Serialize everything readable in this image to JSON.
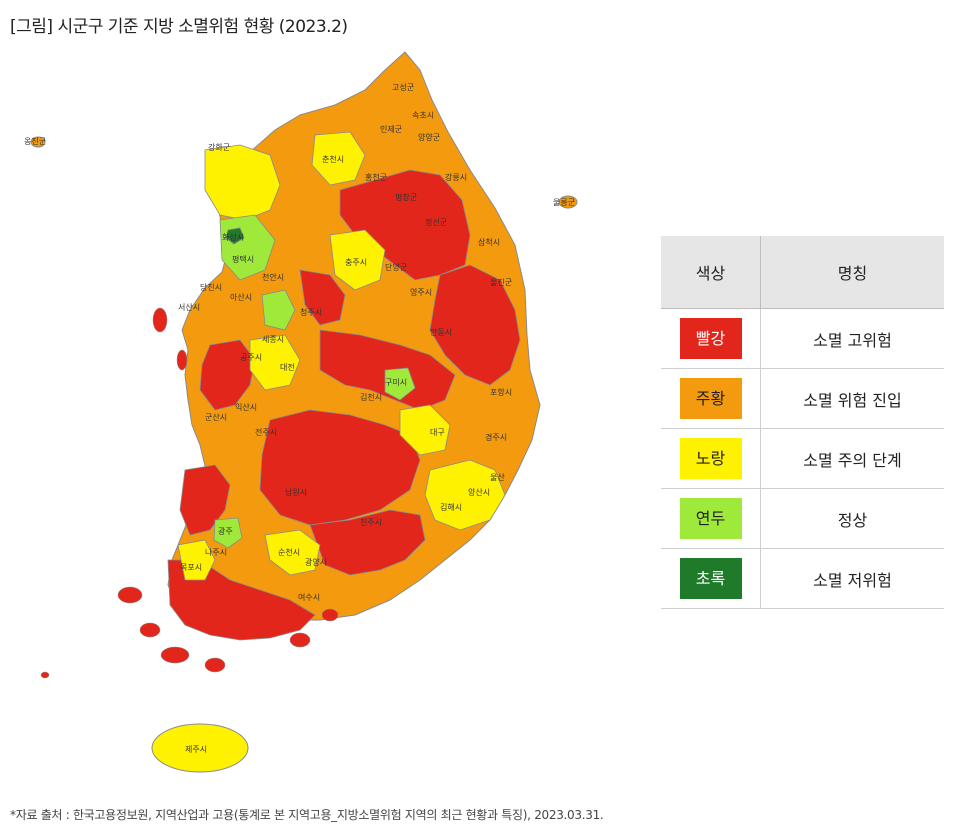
{
  "title": "[그림] 시군구 기준 지방 소멸위험 현황 (2023.2)",
  "legend": {
    "header": {
      "color": "색상",
      "name": "명칭"
    },
    "items": [
      {
        "swatch_label": "빨강",
        "name": "소멸 고위험",
        "color": "#e2261b",
        "text_color": "#ffffff"
      },
      {
        "swatch_label": "주황",
        "name": "소멸 위험 진입",
        "color": "#f39a0e",
        "text_color": "#222222"
      },
      {
        "swatch_label": "노랑",
        "name": "소멸 주의 단계",
        "color": "#fff200",
        "text_color": "#222222"
      },
      {
        "swatch_label": "연두",
        "name": "정상",
        "color": "#9ee93a",
        "text_color": "#222222"
      },
      {
        "swatch_label": "초록",
        "name": "소멸 저위험",
        "color": "#1f7a2a",
        "text_color": "#ffffff"
      }
    ]
  },
  "map_labels": {
    "jeju": "제주시",
    "chuncheon": "춘천시",
    "hongcheon": "홍천군",
    "inje": "인제군",
    "goseong": "고성군",
    "sokcho": "속초시",
    "yangyang": "양양군",
    "gangneung": "강릉시",
    "pyeongchang": "평창군",
    "jeongseon": "정선군",
    "samcheok": "삼척시",
    "uljin": "울진군",
    "andong": "안동시",
    "cheongju": "청주시",
    "chungju": "충주시",
    "danyang": "단양군",
    "yeongju": "영주시",
    "daejeon": "대전",
    "gongju": "공주시",
    "seosan": "서산시",
    "dangjin": "당진시",
    "asan": "아산시",
    "sejong": "세종시",
    "gimcheon": "김천시",
    "gumi": "구미시",
    "pohang": "포항시",
    "gyeongju": "경주시",
    "jeonju": "전주시",
    "gunsan": "군산시",
    "iksan": "익산시",
    "namwon": "남원시",
    "jinju": "진주시",
    "gimhae": "김해시",
    "yangsan": "양산시",
    "ulsan": "울산",
    "suncheon": "순천시",
    "gwangyang": "광양시",
    "naju": "나주시",
    "mokpo": "목포시",
    "yeosu": "여수시",
    "ganghwa": "강화군",
    "pyeongtaek": "평택시",
    "ulleung": "울릉군",
    "baengnyeong": "옹진군",
    "hwaseong": "화성시",
    "cheonan": "천안시",
    "gwangju": "광주",
    "daegu": "대구"
  },
  "source": "*자료 출처 : 한국고용정보원, 지역산업과 고용(통계로 본 지역고용_지방소멸위험 지역의 최근 현황과 특징), 2023.03.31."
}
